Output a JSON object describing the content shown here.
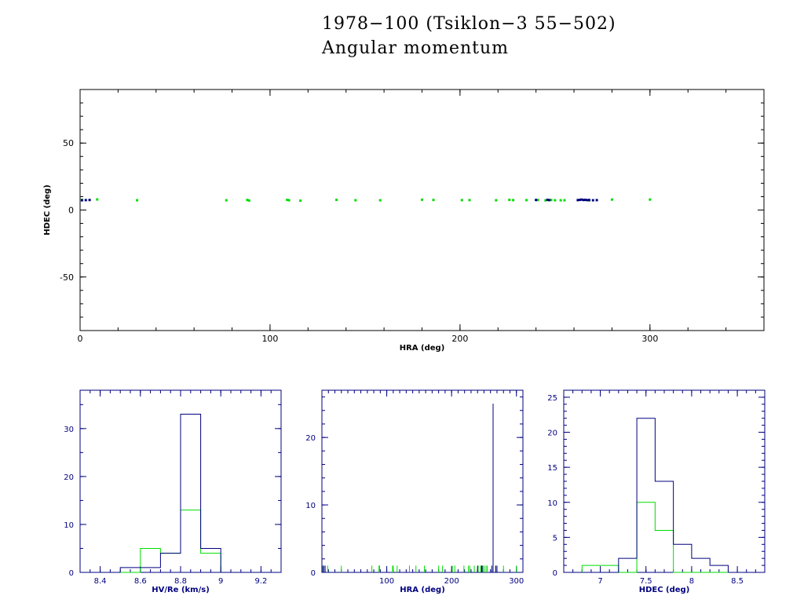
{
  "title": {
    "line1": "1978−100 (Tsiklon−3 55−502)",
    "line2": "Angular momentum"
  },
  "colors": {
    "background": "#ffffff",
    "top_axes": "#000000",
    "bottom_axes": "#000080",
    "series_blue": "#000080",
    "series_green": "#00dd00"
  },
  "chart_data": [
    {
      "id": "main-scatter",
      "type": "scatter",
      "title": "",
      "xlabel": "HRA (deg)",
      "ylabel": "HDEC (deg)",
      "xlim": [
        0,
        360
      ],
      "ylim": [
        -90,
        90
      ],
      "xticks": [
        0,
        100,
        200,
        300
      ],
      "yticks": [
        -50,
        0,
        50
      ],
      "series": [
        {
          "color": "#00dd00",
          "points": [
            [
              1,
              7.6
            ],
            [
              9,
              7.9
            ],
            [
              30,
              7.3
            ],
            [
              77,
              7.3
            ],
            [
              88,
              7.5
            ],
            [
              89,
              7.1
            ],
            [
              109,
              7.6
            ],
            [
              110,
              7.3
            ],
            [
              116,
              7.0
            ],
            [
              135,
              7.6
            ],
            [
              145,
              7.3
            ],
            [
              158,
              7.3
            ],
            [
              180,
              7.7
            ],
            [
              186,
              7.5
            ],
            [
              201,
              7.4
            ],
            [
              205,
              7.4
            ],
            [
              219,
              7.3
            ],
            [
              226,
              7.6
            ],
            [
              228,
              7.4
            ],
            [
              235,
              7.4
            ],
            [
              241,
              7.5
            ],
            [
              245,
              7.2
            ],
            [
              248,
              7.5
            ],
            [
              250,
              7.3
            ],
            [
              253,
              7.3
            ],
            [
              255,
              7.3
            ],
            [
              268,
              7.2
            ],
            [
              280,
              7.8
            ],
            [
              300,
              7.8
            ]
          ]
        },
        {
          "color": "#000080",
          "points": [
            [
              1,
              7.3
            ],
            [
              3,
              7.4
            ],
            [
              5,
              7.5
            ],
            [
              240,
              7.5
            ],
            [
              246,
              7.6
            ],
            [
              247,
              7.4
            ],
            [
              262,
              7.4
            ],
            [
              263,
              7.6
            ],
            [
              264,
              7.8
            ],
            [
              265,
              7.5
            ],
            [
              266,
              7.6
            ],
            [
              267,
              7.4
            ],
            [
              268,
              7.5
            ],
            [
              270,
              7.3
            ],
            [
              272,
              7.4
            ]
          ]
        }
      ]
    },
    {
      "id": "hist-velocity",
      "type": "bar",
      "title": "",
      "xlabel": "HV/Re (km/s)",
      "ylabel": "",
      "xlim": [
        8.3,
        9.3
      ],
      "ylim": [
        0,
        38
      ],
      "xticks": [
        8.4,
        8.6,
        8.8,
        9,
        9.2
      ],
      "xtick_labels": [
        "8.4",
        "8.6",
        "8.8",
        "9",
        "9.2"
      ],
      "yticks": [
        0,
        10,
        20,
        30
      ],
      "bin_edges": [
        8.5,
        8.6,
        8.7,
        8.8,
        8.9,
        9.0
      ],
      "series": [
        {
          "color": "#00dd00",
          "values": [
            0,
            5,
            4,
            13,
            4
          ]
        },
        {
          "color": "#000080",
          "values": [
            1,
            1,
            4,
            33,
            5
          ]
        }
      ]
    },
    {
      "id": "hist-hra",
      "type": "bar",
      "title": "",
      "xlabel": "HRA (deg)",
      "ylabel": "",
      "xlim": [
        0,
        310
      ],
      "ylim": [
        0,
        27
      ],
      "xticks": [
        100,
        200,
        300
      ],
      "yticks": [
        0,
        10,
        20
      ],
      "series": [
        {
          "color": "#00dd00",
          "values_at_x": [
            [
              1,
              1
            ],
            [
              9,
              1
            ],
            [
              30,
              1
            ],
            [
              77,
              1
            ],
            [
              88,
              1
            ],
            [
              89,
              1
            ],
            [
              109,
              1
            ],
            [
              110,
              1
            ],
            [
              116,
              1
            ],
            [
              135,
              1
            ],
            [
              145,
              1
            ],
            [
              158,
              1
            ],
            [
              180,
              1
            ],
            [
              186,
              1
            ],
            [
              201,
              1
            ],
            [
              205,
              1
            ],
            [
              219,
              1
            ],
            [
              226,
              1
            ],
            [
              228,
              1
            ],
            [
              235,
              1
            ],
            [
              241,
              1
            ],
            [
              245,
              1
            ],
            [
              248,
              1
            ],
            [
              250,
              1
            ],
            [
              253,
              1
            ],
            [
              255,
              1
            ],
            [
              268,
              1
            ],
            [
              280,
              1
            ],
            [
              300,
              1
            ]
          ]
        },
        {
          "color": "#000080",
          "values_at_x": [
            [
              1,
              1
            ],
            [
              3,
              1
            ],
            [
              5,
              1
            ],
            [
              240,
              1
            ],
            [
              246,
              1
            ],
            [
              247,
              1
            ],
            [
              262,
              1
            ],
            [
              264,
              25
            ],
            [
              268,
              1
            ],
            [
              270,
              1
            ]
          ]
        }
      ]
    },
    {
      "id": "hist-hdec",
      "type": "bar",
      "title": "",
      "xlabel": "HDEC (deg)",
      "ylabel": "",
      "xlim": [
        6.6,
        8.8
      ],
      "ylim": [
        0,
        26
      ],
      "xticks": [
        7,
        7.5,
        8,
        8.5
      ],
      "xtick_labels": [
        "7",
        "7.5",
        "8",
        "8.5"
      ],
      "yticks": [
        0,
        5,
        10,
        15,
        20,
        25
      ],
      "bin_edges": [
        6.8,
        7.0,
        7.2,
        7.4,
        7.6,
        7.8,
        8.0,
        8.2,
        8.4
      ],
      "series": [
        {
          "color": "#00dd00",
          "values": [
            1,
            1,
            0,
            10,
            6,
            0,
            0,
            0
          ]
        },
        {
          "color": "#000080",
          "values": [
            0,
            0,
            2,
            22,
            13,
            4,
            2,
            1
          ]
        }
      ]
    }
  ]
}
